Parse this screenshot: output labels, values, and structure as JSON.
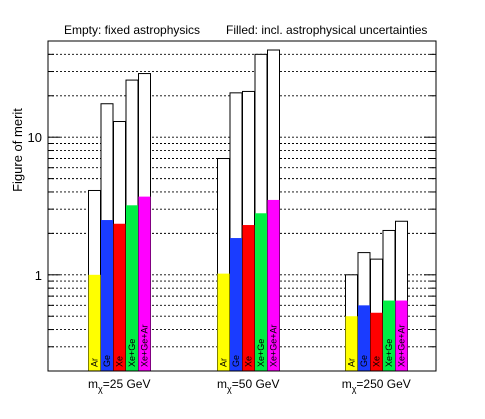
{
  "chart_data": {
    "type": "bar",
    "title": "",
    "header_left": "Empty: fixed astrophysics",
    "header_right": "Filled: incl. astrophysical uncertainties",
    "ylabel": "Figure of merit",
    "xlabel": "",
    "y_scale": "log",
    "ylim": [
      0.2,
      50
    ],
    "y_tick_labels": [
      "1",
      "10"
    ],
    "grid": "horizontal",
    "groups": [
      {
        "label": "mχ=25 GeV",
        "label_main": "m",
        "label_sub": "χ",
        "label_rest": "=25 GeV",
        "bars": [
          {
            "name": "Ar",
            "filled": 1.0,
            "empty": 4.1
          },
          {
            "name": "Ge",
            "filled": 2.5,
            "empty": 17.5
          },
          {
            "name": "Xe",
            "filled": 2.35,
            "empty": 13.0
          },
          {
            "name": "Xe+Ge",
            "filled": 3.2,
            "empty": 26.0
          },
          {
            "name": "Xe+Ge+Ar",
            "filled": 3.7,
            "empty": 29.0
          }
        ]
      },
      {
        "label": "mχ=50 GeV",
        "label_main": "m",
        "label_sub": "χ",
        "label_rest": "=50 GeV",
        "bars": [
          {
            "name": "Ar",
            "filled": 1.02,
            "empty": 7.0
          },
          {
            "name": "Ge",
            "filled": 1.85,
            "empty": 21.0
          },
          {
            "name": "Xe",
            "filled": 2.3,
            "empty": 21.5
          },
          {
            "name": "Xe+Ge",
            "filled": 2.8,
            "empty": 40.0
          },
          {
            "name": "Xe+Ge+Ar",
            "filled": 3.5,
            "empty": 43.0
          }
        ]
      },
      {
        "label": "mχ=250 GeV",
        "label_main": "m",
        "label_sub": "χ",
        "label_rest": "=250 GeV",
        "bars": [
          {
            "name": "Ar",
            "filled": 0.5,
            "empty": 1.0
          },
          {
            "name": "Ge",
            "filled": 0.6,
            "empty": 1.45
          },
          {
            "name": "Xe",
            "filled": 0.53,
            "empty": 1.3
          },
          {
            "name": "Xe+Ge",
            "filled": 0.65,
            "empty": 2.1
          },
          {
            "name": "Xe+Ge+Ar",
            "filled": 0.65,
            "empty": 2.45
          }
        ]
      }
    ],
    "colors": {
      "Ar": "#ffff00",
      "Ge": "#1a3cff",
      "Xe": "#ff0000",
      "Xe+Ge": "#00ee44",
      "Xe+Ge+Ar": "#ff00ff"
    }
  }
}
